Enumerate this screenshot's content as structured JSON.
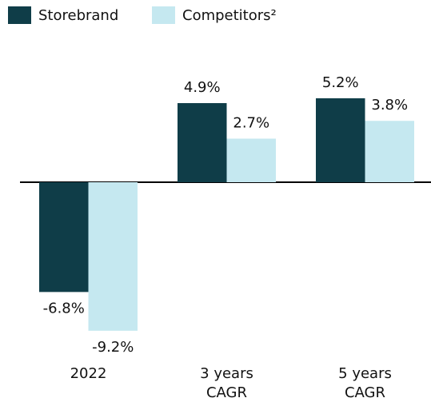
{
  "chart_data": {
    "type": "bar",
    "categories": [
      "2022",
      "3 years CAGR",
      "5 years CAGR"
    ],
    "series": [
      {
        "name": "Storebrand",
        "color": "#0f3d48",
        "values": [
          -6.8,
          4.9,
          5.2
        ],
        "value_labels": [
          "-6.8%",
          "4.9%",
          "5.2%"
        ]
      },
      {
        "name": "Competitors²",
        "color": "#c5e8f0",
        "values": [
          -9.2,
          2.7,
          3.8
        ],
        "value_labels": [
          "-9.2%",
          "2.7%",
          "3.8%"
        ]
      }
    ]
  }
}
